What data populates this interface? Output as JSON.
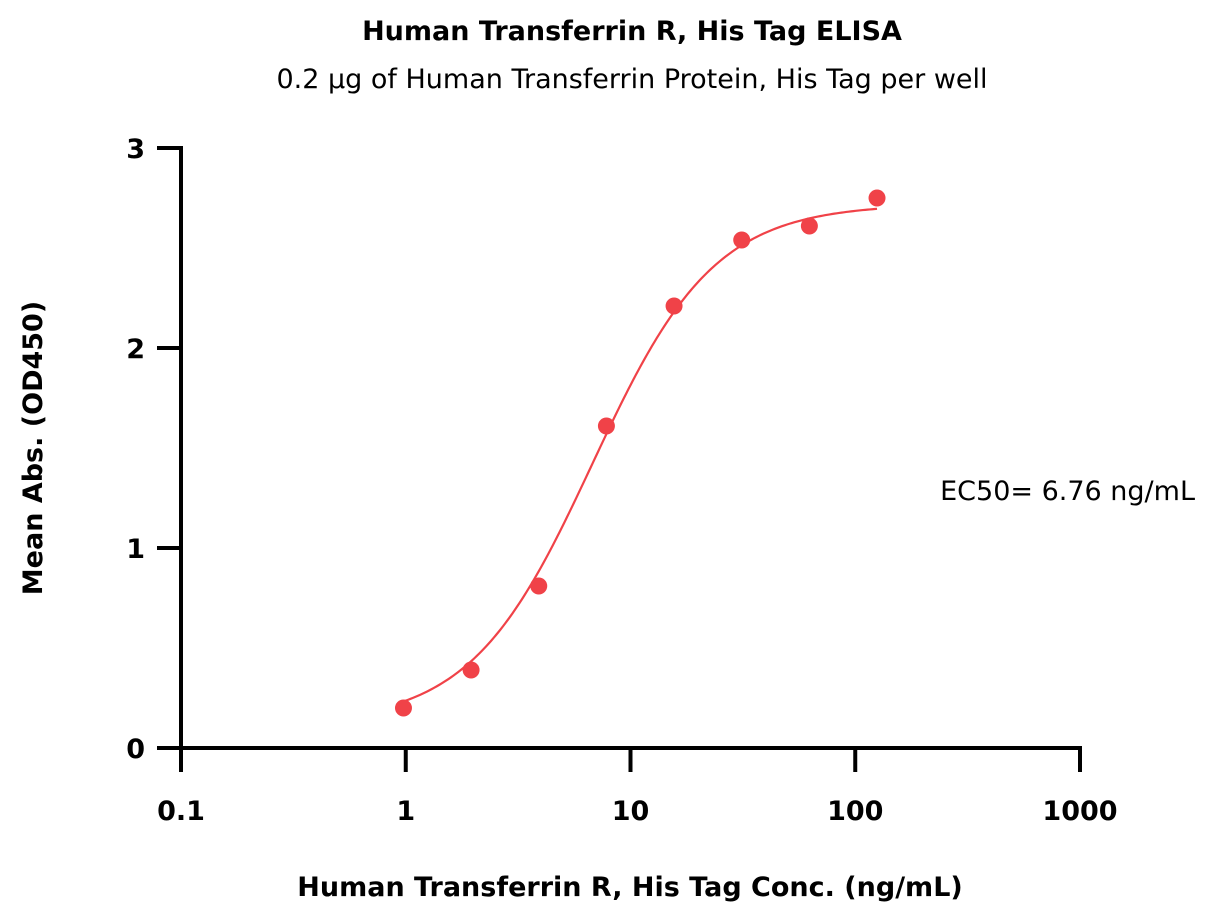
{
  "chart_data": {
    "type": "scatter",
    "title": "Human Transferrin R, His Tag ELISA",
    "subtitle": "0.2 μg of Human Transferrin Protein, His Tag per well",
    "xlabel": "Human Transferrin R, His Tag Conc. (ng/mL)",
    "ylabel": "Mean Abs. (OD450)",
    "x_scale": "log",
    "xlim": [
      0.1,
      1000
    ],
    "ylim": [
      0,
      3
    ],
    "x_ticks": [
      {
        "value": 0.1,
        "label": "0.1"
      },
      {
        "value": 1,
        "label": "1"
      },
      {
        "value": 10,
        "label": "10"
      },
      {
        "value": 100,
        "label": "100"
      },
      {
        "value": 1000,
        "label": "1000"
      }
    ],
    "y_ticks": [
      {
        "value": 0,
        "label": "0"
      },
      {
        "value": 1,
        "label": "1"
      },
      {
        "value": 2,
        "label": "2"
      },
      {
        "value": 3,
        "label": "3"
      }
    ],
    "grid": false,
    "series": [
      {
        "color": "#f04248",
        "x": [
          0.977,
          1.953,
          3.906,
          7.813,
          15.625,
          31.25,
          62.5,
          125
        ],
        "y": [
          0.2,
          0.39,
          0.81,
          1.61,
          2.21,
          2.54,
          2.61,
          2.75
        ]
      }
    ],
    "fit": {
      "model": "4PL",
      "bottom": 0.12,
      "top": 2.72,
      "ec50": 6.76,
      "hill": 1.6,
      "x_range": [
        0.977,
        125
      ],
      "color": "#f04248"
    },
    "annotation": "EC50= 6.76 ng/mL"
  }
}
